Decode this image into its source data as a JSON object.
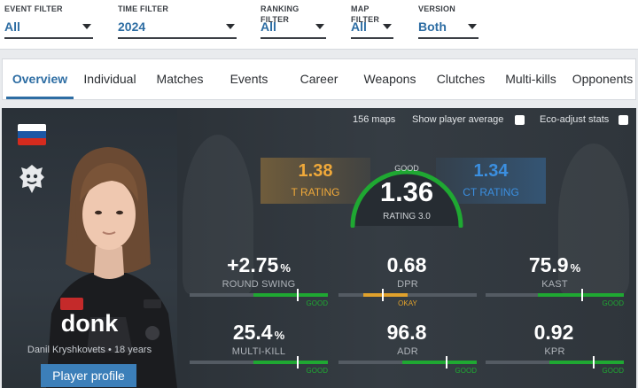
{
  "filters": [
    {
      "label": "EVENT FILTER",
      "value": "All"
    },
    {
      "label": "TIME FILTER",
      "value": "2024"
    },
    {
      "label": "RANKING FILTER",
      "value": "All"
    },
    {
      "label": "MAP FILTER",
      "value": "All"
    },
    {
      "label": "VERSION",
      "value": "Both"
    }
  ],
  "tabs": [
    "Overview",
    "Individual",
    "Matches",
    "Events",
    "Career",
    "Weapons",
    "Clutches",
    "Multi-kills",
    "Opponents"
  ],
  "active_tab": "Overview",
  "player": {
    "nickname": "donk",
    "real_name": "Danil Kryshkovets",
    "age": "18 years",
    "profile_button": "Player profile",
    "country": "Russia",
    "flag_colors": [
      "#ffffff",
      "#1c57a5",
      "#d52b1e"
    ],
    "team_logo_icon": "spirit-dragon-icon"
  },
  "controls": {
    "maps": "156 maps",
    "show_player_average": "Show player average",
    "eco_adjust": "Eco-adjust stats"
  },
  "ratings": {
    "t_rating": {
      "value": "1.38",
      "label": "T RATING",
      "color": "#f0a93a"
    },
    "ct_rating": {
      "value": "1.34",
      "label": "CT RATING",
      "color": "#3b8fe0"
    },
    "main": {
      "value": "1.36",
      "label": "RATING 3.0",
      "tier": "GOOD",
      "color": "#1fa832"
    }
  },
  "stats": [
    {
      "value": "+2.75",
      "unit": "%",
      "label": "ROUND SWING",
      "tier": "GOOD",
      "level": 0.78
    },
    {
      "value": "0.68",
      "unit": "",
      "label": "DPR",
      "tier": "OKAY",
      "level": 0.32
    },
    {
      "value": "75.9",
      "unit": "%",
      "label": "KAST",
      "tier": "GOOD",
      "level": 0.7
    },
    {
      "value": "25.4",
      "unit": "%",
      "label": "MULTI-KILL",
      "tier": "GOOD",
      "level": 0.78
    },
    {
      "value": "96.8",
      "unit": "",
      "label": "ADR",
      "tier": "GOOD",
      "level": 0.78
    },
    {
      "value": "0.92",
      "unit": "",
      "label": "KPR",
      "tier": "GOOD",
      "level": 0.78
    }
  ],
  "tier_colors": {
    "good": "#1fa832",
    "okay": "#e0a12c"
  }
}
